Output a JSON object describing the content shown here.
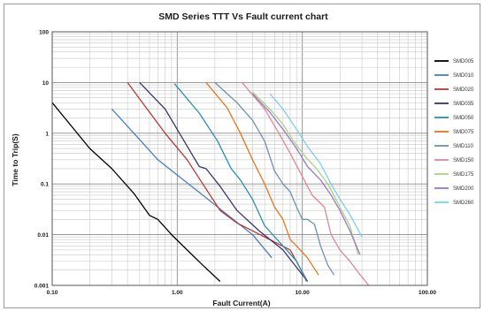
{
  "chart_data": {
    "type": "line",
    "title": "SMD Series TTT Vs Fault current chart",
    "xlabel": "Fault Current(A)",
    "ylabel": "Time to Trip(S)",
    "x_scale": "log",
    "y_scale": "log",
    "xlim": [
      0.1,
      100
    ],
    "ylim": [
      0.001,
      100
    ],
    "x_ticks": [
      {
        "value": 0.1,
        "label": "0.10"
      },
      {
        "value": 1,
        "label": "1.00"
      },
      {
        "value": 10,
        "label": "10.00"
      },
      {
        "value": 100,
        "label": "100.00"
      }
    ],
    "y_ticks": [
      {
        "value": 100,
        "label": "100"
      },
      {
        "value": 10,
        "label": "10"
      },
      {
        "value": 1,
        "label": "1"
      },
      {
        "value": 0.1,
        "label": "0.1"
      },
      {
        "value": 0.01,
        "label": "0.01"
      },
      {
        "value": 0.001,
        "label": "0.001"
      }
    ],
    "grid": true,
    "legend_position": "right",
    "series": [
      {
        "name": "SMD005",
        "color": "#000000",
        "points": [
          [
            0.1,
            4.0
          ],
          [
            0.2,
            0.5
          ],
          [
            0.3,
            0.2
          ],
          [
            0.45,
            0.065
          ],
          [
            0.6,
            0.024
          ],
          [
            0.7,
            0.02
          ],
          [
            0.9,
            0.01
          ],
          [
            1.2,
            0.005
          ],
          [
            1.6,
            0.0025
          ],
          [
            2.2,
            0.0012
          ]
        ]
      },
      {
        "name": "SMD010",
        "color": "#4a7fb5",
        "points": [
          [
            0.3,
            3.0
          ],
          [
            0.45,
            1.0
          ],
          [
            0.7,
            0.3
          ],
          [
            1.0,
            0.15
          ],
          [
            1.6,
            0.06
          ],
          [
            2.5,
            0.025
          ],
          [
            4.0,
            0.01
          ],
          [
            5.7,
            0.0035
          ]
        ]
      },
      {
        "name": "SMD020",
        "color": "#b03a3a",
        "points": [
          [
            0.4,
            10.0
          ],
          [
            0.6,
            2.6
          ],
          [
            0.8,
            1.0
          ],
          [
            1.2,
            0.3
          ],
          [
            1.6,
            0.1
          ],
          [
            2.2,
            0.03
          ],
          [
            3.0,
            0.017
          ],
          [
            5.0,
            0.009
          ],
          [
            8.0,
            0.005
          ],
          [
            11.0,
            0.0012
          ]
        ]
      },
      {
        "name": "SMD035",
        "color": "#3b3566",
        "points": [
          [
            0.5,
            10.0
          ],
          [
            0.8,
            3.0
          ],
          [
            1.1,
            0.8
          ],
          [
            1.5,
            0.22
          ],
          [
            1.7,
            0.2
          ],
          [
            2.2,
            0.09
          ],
          [
            3.0,
            0.03
          ],
          [
            4.5,
            0.012
          ],
          [
            7.0,
            0.005
          ],
          [
            11.0,
            0.0012
          ]
        ]
      },
      {
        "name": "SMD050",
        "color": "#2a8fad",
        "points": [
          [
            0.95,
            9.5
          ],
          [
            1.5,
            2.5
          ],
          [
            2.1,
            0.7
          ],
          [
            2.7,
            0.2
          ],
          [
            3.2,
            0.12
          ],
          [
            4.0,
            0.05
          ],
          [
            5.0,
            0.015
          ],
          [
            7.0,
            0.006
          ],
          [
            9.0,
            0.003
          ],
          [
            10.8,
            0.0012
          ]
        ]
      },
      {
        "name": "SMD075",
        "color": "#e0781e",
        "points": [
          [
            1.7,
            10.0
          ],
          [
            2.5,
            3.2
          ],
          [
            3.2,
            1.0
          ],
          [
            4.0,
            0.3
          ],
          [
            5.0,
            0.1
          ],
          [
            6.0,
            0.035
          ],
          [
            7.0,
            0.02
          ],
          [
            8.0,
            0.008
          ],
          [
            9.0,
            0.006
          ],
          [
            11.0,
            0.0035
          ],
          [
            12.0,
            0.0025
          ],
          [
            13.5,
            0.0016
          ]
        ]
      },
      {
        "name": "SMD110",
        "color": "#6f8fb0",
        "points": [
          [
            2.0,
            10.0
          ],
          [
            3.0,
            4.0
          ],
          [
            4.0,
            1.8
          ],
          [
            5.0,
            0.7
          ],
          [
            6.0,
            0.18
          ],
          [
            7.0,
            0.1
          ],
          [
            8.0,
            0.07
          ],
          [
            9.0,
            0.035
          ],
          [
            10.0,
            0.02
          ],
          [
            11.0,
            0.02
          ],
          [
            12.5,
            0.016
          ],
          [
            14.0,
            0.006
          ],
          [
            16.0,
            0.0025
          ],
          [
            18.0,
            0.0016
          ]
        ]
      },
      {
        "name": "SMD150",
        "color": "#d98a96",
        "points": [
          [
            3.3,
            10.0
          ],
          [
            5.0,
            3.0
          ],
          [
            6.5,
            1.0
          ],
          [
            8.0,
            0.4
          ],
          [
            10.0,
            0.14
          ],
          [
            12.0,
            0.06
          ],
          [
            15.0,
            0.035
          ],
          [
            17.0,
            0.01
          ],
          [
            20.0,
            0.005
          ],
          [
            24.0,
            0.003
          ],
          [
            28.0,
            0.0018
          ],
          [
            34.0,
            0.001
          ]
        ]
      },
      {
        "name": "SMD175",
        "color": "#a8d48a",
        "points": [
          [
            4.0,
            6.5
          ],
          [
            5.5,
            3.0
          ],
          [
            7.0,
            1.5
          ],
          [
            8.5,
            0.7
          ],
          [
            10.5,
            0.35
          ],
          [
            13.0,
            0.2
          ],
          [
            16.0,
            0.1
          ],
          [
            20.0,
            0.035
          ],
          [
            24.0,
            0.015
          ],
          [
            28.0,
            0.004
          ]
        ]
      },
      {
        "name": "SMD200",
        "color": "#9a79be",
        "points": [
          [
            4.0,
            6.0
          ],
          [
            5.5,
            2.6
          ],
          [
            7.0,
            1.2
          ],
          [
            9.0,
            0.5
          ],
          [
            11.0,
            0.22
          ],
          [
            14.0,
            0.12
          ],
          [
            17.0,
            0.06
          ],
          [
            20.0,
            0.03
          ],
          [
            24.0,
            0.012
          ],
          [
            29.0,
            0.004
          ]
        ]
      },
      {
        "name": "SMD260",
        "color": "#7fcfe8",
        "points": [
          [
            5.5,
            6.0
          ],
          [
            7.0,
            3.0
          ],
          [
            9.0,
            1.2
          ],
          [
            11.0,
            0.55
          ],
          [
            14.0,
            0.25
          ],
          [
            17.0,
            0.1
          ],
          [
            20.0,
            0.05
          ],
          [
            24.0,
            0.025
          ],
          [
            30.0,
            0.009
          ]
        ]
      }
    ]
  }
}
